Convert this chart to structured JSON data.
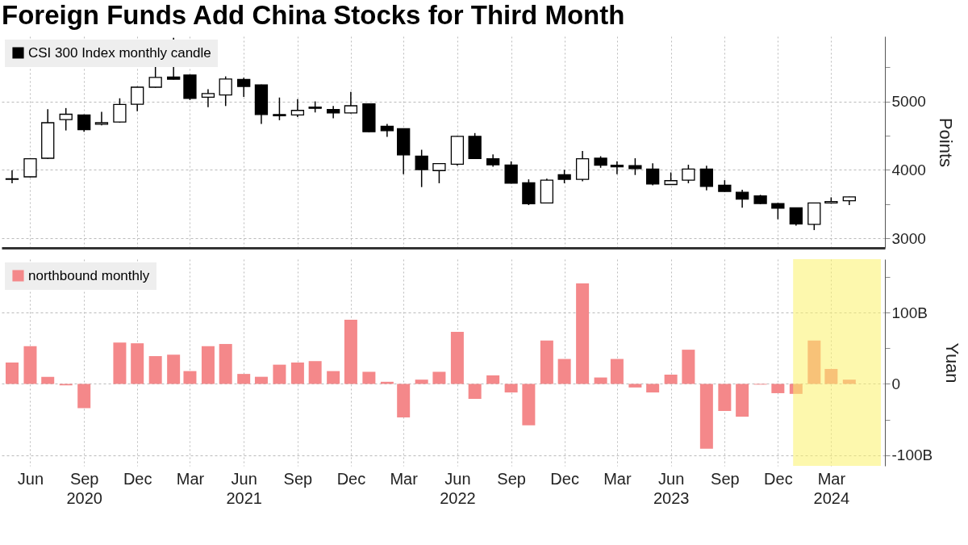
{
  "chart_data": [
    {
      "type": "candlestick",
      "title": "Foreign Funds Add China Stocks for Third Month",
      "ylabel": "Points",
      "legend": "top left",
      "grid": true,
      "tick_labels": "y",
      "x": [
        "2020-05",
        "2020-06",
        "2020-07",
        "2020-08",
        "2020-09",
        "2020-10",
        "2020-11",
        "2020-12",
        "2021-01",
        "2021-02",
        "2021-03",
        "2021-04",
        "2021-05",
        "2021-06",
        "2021-07",
        "2021-08",
        "2021-09",
        "2021-10",
        "2021-11",
        "2021-12",
        "2022-01",
        "2022-02",
        "2022-03",
        "2022-04",
        "2022-05",
        "2022-06",
        "2022-07",
        "2022-08",
        "2022-09",
        "2022-10",
        "2022-11",
        "2022-12",
        "2023-01",
        "2023-02",
        "2023-03",
        "2023-04",
        "2023-05",
        "2023-06",
        "2023-07",
        "2023-08",
        "2023-09",
        "2023-10",
        "2023-11",
        "2023-12",
        "2024-01",
        "2024-02",
        "2024-03",
        "2024-04"
      ],
      "xlim": [
        "2020-04-20",
        "2024-05-25"
      ],
      "xticks": [
        {
          "value": "2020-06",
          "label": null
        },
        {
          "value": "2020-09",
          "label": null
        },
        {
          "value": "2020-12",
          "label": null
        },
        {
          "value": "2021-03",
          "label": null
        },
        {
          "value": "2021-06",
          "label": null
        },
        {
          "value": "2021-09",
          "label": null
        },
        {
          "value": "2021-12",
          "label": null
        },
        {
          "value": "2022-03",
          "label": null
        },
        {
          "value": "2022-06",
          "label": null
        },
        {
          "value": "2022-09",
          "label": null
        },
        {
          "value": "2022-12",
          "label": null
        },
        {
          "value": "2023-03",
          "label": null
        },
        {
          "value": "2023-06",
          "label": null
        },
        {
          "value": "2023-09",
          "label": null
        },
        {
          "value": "2023-12",
          "label": null
        },
        {
          "value": "2024-03",
          "label": null
        }
      ],
      "ylim": [
        2860,
        5950
      ],
      "yticks": [
        3000,
        {
          "value": 3500,
          "label": null
        },
        4000,
        {
          "value": 4500,
          "label": null
        },
        5000,
        {
          "value": 5500,
          "label": null
        }
      ],
      "series": [
        {
          "name": "CSI 300 Index monthly candle",
          "color": "#000000",
          "ohlc": [
            [
              3860,
              3992,
              3804,
              3870
            ],
            [
              3898,
              4170,
              3890,
              4161
            ],
            [
              4169,
              4887,
              4160,
              4688
            ],
            [
              4733,
              4902,
              4575,
              4812
            ],
            [
              4801,
              4810,
              4556,
              4586
            ],
            [
              4665,
              4846,
              4650,
              4688
            ],
            [
              4699,
              5045,
              4690,
              4955
            ],
            [
              4959,
              5215,
              4857,
              5207
            ],
            [
              5207,
              5666,
              5200,
              5350
            ],
            [
              5357,
              5930,
              5320,
              5323
            ],
            [
              5384,
              5390,
              5020,
              5045
            ],
            [
              5060,
              5177,
              4914,
              5113
            ],
            [
              5094,
              5365,
              4932,
              5327
            ],
            [
              5320,
              5346,
              5064,
              5218
            ],
            [
              5241,
              5245,
              4669,
              4808
            ],
            [
              4808,
              5056,
              4725,
              4790
            ],
            [
              4801,
              5034,
              4771,
              4868
            ],
            [
              4917,
              5000,
              4838,
              4898
            ],
            [
              4880,
              4932,
              4752,
              4831
            ],
            [
              4831,
              5139,
              4825,
              4936
            ],
            [
              4962,
              4965,
              4550,
              4556
            ],
            [
              4635,
              4669,
              4481,
              4571
            ],
            [
              4601,
              4605,
              3936,
              4218
            ],
            [
              4199,
              4293,
              3748,
              4004
            ],
            [
              3989,
              4095,
              3804,
              4090
            ],
            [
              4083,
              4495,
              4060,
              4489
            ],
            [
              4489,
              4537,
              4160,
              4165
            ],
            [
              4161,
              4225,
              4045,
              4075
            ],
            [
              4071,
              4124,
              3800,
              3804
            ],
            [
              3812,
              3861,
              3485,
              3504
            ],
            [
              3515,
              3872,
              3510,
              3849
            ],
            [
              3928,
              4000,
              3804,
              3861
            ],
            [
              3861,
              4274,
              3834,
              4161
            ],
            [
              4169,
              4199,
              4030,
              4068
            ],
            [
              4068,
              4124,
              3936,
              4045
            ],
            [
              4060,
              4169,
              3925,
              4019
            ],
            [
              4011,
              4094,
              3774,
              3793
            ],
            [
              3786,
              3962,
              3780,
              3842
            ],
            [
              3849,
              4075,
              3804,
              4011
            ],
            [
              4011,
              4060,
              3699,
              3759
            ],
            [
              3774,
              3849,
              3680,
              3684
            ],
            [
              3673,
              3710,
              3447,
              3571
            ],
            [
              3620,
              3635,
              3500,
              3508
            ],
            [
              3508,
              3515,
              3278,
              3440
            ],
            [
              3444,
              3450,
              3184,
              3210
            ],
            [
              3203,
              3520,
              3120,
              3515
            ],
            [
              3515,
              3598,
              3505,
              3537
            ],
            [
              3549,
              3610,
              3485,
              3605
            ]
          ]
        }
      ]
    },
    {
      "type": "bar",
      "ylabel": "Yuan",
      "legend": "top left",
      "grid": true,
      "x": [
        "2020-05",
        "2020-06",
        "2020-07",
        "2020-08",
        "2020-09",
        "2020-10",
        "2020-11",
        "2020-12",
        "2021-01",
        "2021-02",
        "2021-03",
        "2021-04",
        "2021-05",
        "2021-06",
        "2021-07",
        "2021-08",
        "2021-09",
        "2021-10",
        "2021-11",
        "2021-12",
        "2022-01",
        "2022-02",
        "2022-03",
        "2022-04",
        "2022-05",
        "2022-06",
        "2022-07",
        "2022-08",
        "2022-09",
        "2022-10",
        "2022-11",
        "2022-12",
        "2023-01",
        "2023-02",
        "2023-03",
        "2023-04",
        "2023-05",
        "2023-06",
        "2023-07",
        "2023-08",
        "2023-09",
        "2023-10",
        "2023-11",
        "2023-12",
        "2024-01",
        "2024-02",
        "2024-03",
        "2024-04"
      ],
      "xlim": [
        "2020-04-20",
        "2024-05-25"
      ],
      "xticks": [
        {
          "value": "2020-06",
          "label": "Jun"
        },
        {
          "value": "2020-09",
          "label": "Sep\n2020"
        },
        {
          "value": "2020-12",
          "label": "Dec"
        },
        {
          "value": "2021-03",
          "label": "Mar"
        },
        {
          "value": "2021-06",
          "label": "Jun\n2021"
        },
        {
          "value": "2021-09",
          "label": "Sep"
        },
        {
          "value": "2021-12",
          "label": "Dec"
        },
        {
          "value": "2022-03",
          "label": "Mar"
        },
        {
          "value": "2022-06",
          "label": "Jun\n2022"
        },
        {
          "value": "2022-09",
          "label": "Sep"
        },
        {
          "value": "2022-12",
          "label": "Dec"
        },
        {
          "value": "2023-03",
          "label": "Mar"
        },
        {
          "value": "2023-06",
          "label": "Jun\n2023"
        },
        {
          "value": "2023-09",
          "label": "Sep"
        },
        {
          "value": "2023-12",
          "label": "Dec"
        },
        {
          "value": "2024-03",
          "label": "Mar\n2024"
        }
      ],
      "ylim": [
        -115,
        175
      ],
      "yticks": [
        {
          "value": -100,
          "label": "-100B"
        },
        {
          "value": -50,
          "label": null
        },
        0,
        {
          "value": 50,
          "label": null
        },
        {
          "value": 100,
          "label": "100B"
        },
        {
          "value": 150,
          "label": null
        }
      ],
      "bands": [
        {
          "axis": "x",
          "from": "2023-12-27",
          "to": "2024-05-25",
          "color": "#fbf36a"
        }
      ],
      "series": [
        {
          "name": "northbound monthly",
          "color": "#f4888a",
          "values": [
            30,
            53,
            10,
            -2,
            -34,
            0,
            58,
            57,
            39,
            41,
            18,
            53,
            56,
            14,
            10,
            27,
            30,
            32,
            18,
            90,
            17,
            3,
            -47,
            6,
            17,
            73,
            -21,
            12,
            -12,
            -58,
            61,
            35,
            141,
            9,
            35,
            -5,
            -12,
            13,
            48,
            -91,
            -38,
            -46,
            -1,
            -13,
            -14,
            61,
            21,
            6
          ]
        }
      ]
    }
  ]
}
